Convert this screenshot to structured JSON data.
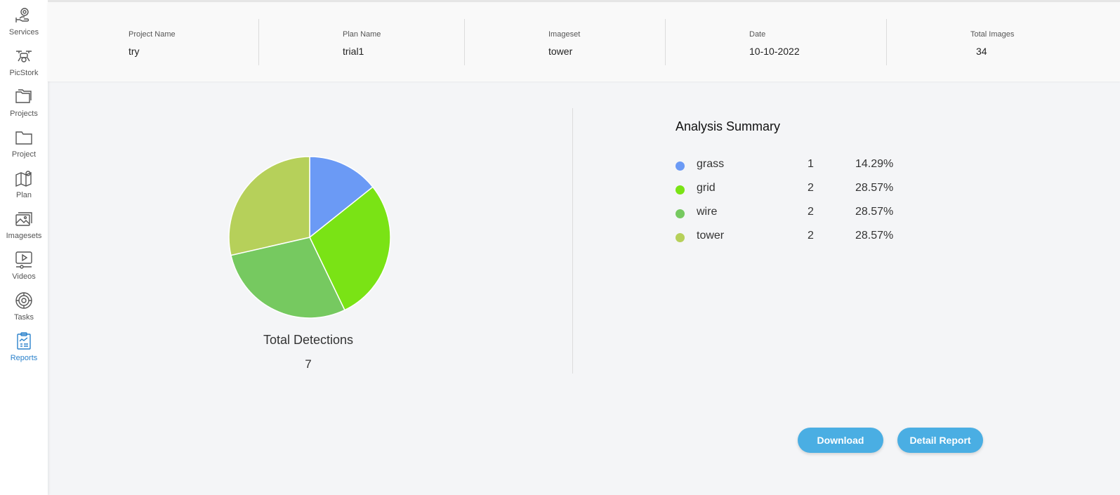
{
  "sidebar": {
    "items": [
      {
        "label": "Services",
        "icon": "services-icon"
      },
      {
        "label": "PicStork",
        "icon": "drone-icon"
      },
      {
        "label": "Projects",
        "icon": "folders-icon"
      },
      {
        "label": "Project",
        "icon": "folder-icon"
      },
      {
        "label": "Plan",
        "icon": "map-pin-icon"
      },
      {
        "label": "Imagesets",
        "icon": "images-icon"
      },
      {
        "label": "Videos",
        "icon": "video-icon"
      },
      {
        "label": "Tasks",
        "icon": "gear-icon"
      },
      {
        "label": "Reports",
        "icon": "report-icon"
      }
    ],
    "active": "Reports"
  },
  "header": {
    "project_name": {
      "label": "Project Name",
      "value": "try"
    },
    "plan_name": {
      "label": "Plan Name",
      "value": "trial1"
    },
    "imageset": {
      "label": "Imageset",
      "value": "tower"
    },
    "date": {
      "label": "Date",
      "value": "10-10-2022"
    },
    "total_images": {
      "label": "Total Images",
      "value": "34"
    }
  },
  "totals": {
    "title": "Total Detections",
    "value": "7"
  },
  "summary": {
    "title": "Analysis Summary",
    "rows": [
      {
        "name": "grass",
        "count": "1",
        "percent": "14.29%",
        "color": "#6b9af5"
      },
      {
        "name": "grid",
        "count": "2",
        "percent": "28.57%",
        "color": "#7ae315"
      },
      {
        "name": "wire",
        "count": "2",
        "percent": "28.57%",
        "color": "#76c960"
      },
      {
        "name": "tower",
        "count": "2",
        "percent": "28.57%",
        "color": "#b6d05a"
      }
    ]
  },
  "chart_data": {
    "type": "pie",
    "categories": [
      "grass",
      "grid",
      "wire",
      "tower"
    ],
    "values": [
      1,
      2,
      2,
      2
    ],
    "colors": [
      "#6b9af5",
      "#7ae315",
      "#76c960",
      "#b6d05a"
    ]
  },
  "actions": {
    "download_label": "Download",
    "detail_label": "Detail Report"
  }
}
